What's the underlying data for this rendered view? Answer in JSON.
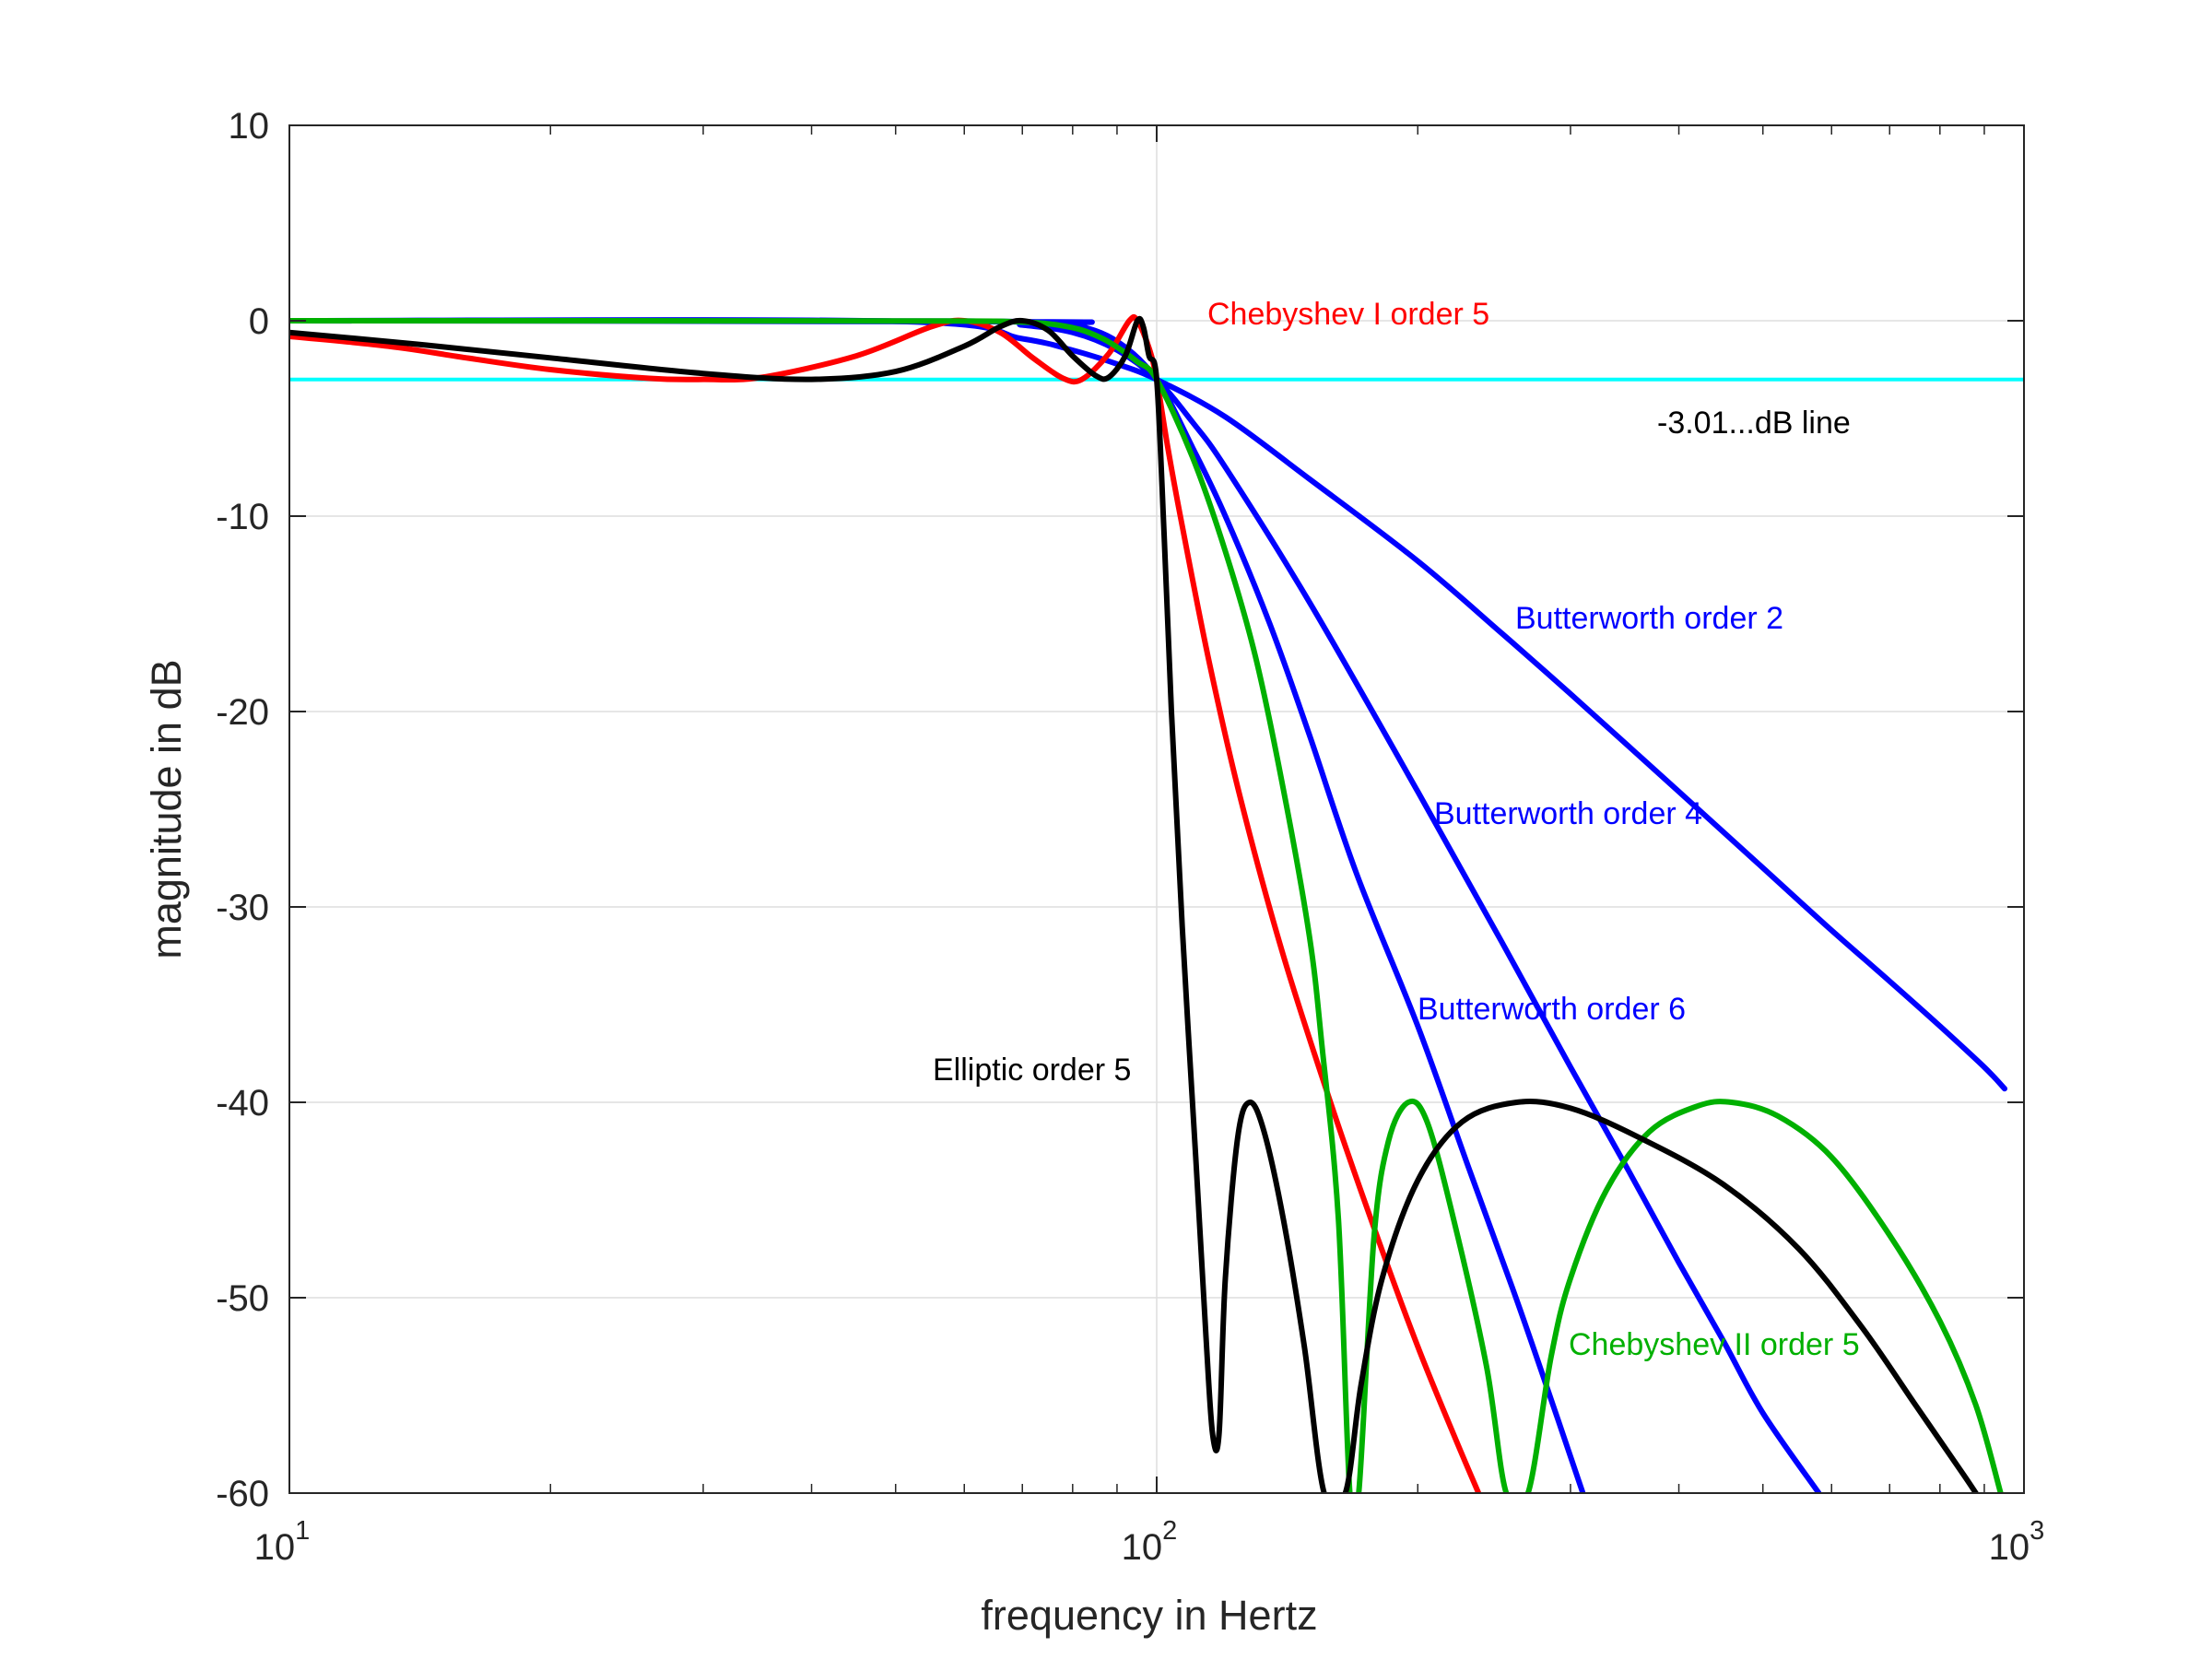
{
  "chart_data": {
    "type": "line",
    "title": "",
    "xlabel": "frequency in Hertz",
    "ylabel": "magnitude in dB",
    "x_scale": "log",
    "xlim": [
      10,
      1000
    ],
    "ylim": [
      -60,
      10
    ],
    "grid": true,
    "x_ticks": [
      {
        "value": 10,
        "base": "10",
        "exp": "1"
      },
      {
        "value": 100,
        "base": "10",
        "exp": "2"
      },
      {
        "value": 1000,
        "base": "10",
        "exp": "3"
      }
    ],
    "y_ticks": [
      {
        "value": 10,
        "label": "10"
      },
      {
        "value": 0,
        "label": "0"
      },
      {
        "value": -10,
        "label": "-10"
      },
      {
        "value": -20,
        "label": "-20"
      },
      {
        "value": -30,
        "label": "-30"
      },
      {
        "value": -40,
        "label": "-40"
      },
      {
        "value": -50,
        "label": "-50"
      },
      {
        "value": -60,
        "label": "-60"
      }
    ],
    "series": [
      {
        "key": "reference",
        "color": "#00FFFF",
        "points": [
          [
            10,
            -3.01
          ],
          [
            1000,
            -3.01
          ]
        ]
      },
      {
        "key": "butterworth2",
        "color": "#0000FF",
        "points": [
          [
            10,
            0
          ],
          [
            50,
            -0.03
          ],
          [
            70,
            -0.92
          ],
          [
            80,
            -1.51
          ],
          [
            90,
            -2.21
          ],
          [
            100,
            -3.01
          ],
          [
            120,
            -4.92
          ],
          [
            150,
            -8.1
          ],
          [
            200,
            -12.3
          ],
          [
            250,
            -16.0
          ],
          [
            300,
            -19.1
          ],
          [
            400,
            -24.1
          ],
          [
            500,
            -28.0
          ],
          [
            600,
            -31.2
          ],
          [
            700,
            -33.8
          ],
          [
            800,
            -36.1
          ],
          [
            900,
            -38.2
          ],
          [
            950,
            -39.3
          ]
        ]
      },
      {
        "key": "butterworth4",
        "color": "#0000FF",
        "points": [
          [
            10,
            0
          ],
          [
            60,
            -0.02
          ],
          [
            70,
            -0.22
          ],
          [
            80,
            -0.6
          ],
          [
            90,
            -1.5
          ],
          [
            100,
            -3.01
          ],
          [
            110,
            -5.2
          ],
          [
            120,
            -7.5
          ],
          [
            150,
            -14.4
          ],
          [
            200,
            -24.1
          ],
          [
            250,
            -31.8
          ],
          [
            300,
            -38.2
          ],
          [
            350,
            -43.5
          ],
          [
            400,
            -48.2
          ],
          [
            450,
            -52.2
          ],
          [
            500,
            -55.9
          ],
          [
            580,
            -60
          ]
        ]
      },
      {
        "key": "butterworth6",
        "color": "#0000FF",
        "points": [
          [
            10,
            0
          ],
          [
            70,
            -0.05
          ],
          [
            80,
            -0.2
          ],
          [
            90,
            -1.05
          ],
          [
            100,
            -3.01
          ],
          [
            110,
            -6.5
          ],
          [
            120,
            -10.0
          ],
          [
            135,
            -15.5
          ],
          [
            150,
            -21.2
          ],
          [
            170,
            -28.3
          ],
          [
            200,
            -36.1
          ],
          [
            230,
            -43.6
          ],
          [
            260,
            -50.1
          ],
          [
            290,
            -56.2
          ],
          [
            310,
            -60
          ]
        ]
      },
      {
        "key": "chebyshev1",
        "color": "#FF0000",
        "points": [
          [
            10,
            -0.8
          ],
          [
            13,
            -1.3
          ],
          [
            16,
            -1.9
          ],
          [
            20,
            -2.5
          ],
          [
            26,
            -2.95
          ],
          [
            30,
            -3.0
          ],
          [
            35,
            -2.9
          ],
          [
            45,
            -1.8
          ],
          [
            55,
            -0.3
          ],
          [
            60,
            0
          ],
          [
            66,
            -0.6
          ],
          [
            72,
            -1.9
          ],
          [
            78,
            -2.95
          ],
          [
            82,
            -3.0
          ],
          [
            88,
            -1.7
          ],
          [
            93,
            0
          ],
          [
            95,
            0
          ],
          [
            98,
            -1.4
          ],
          [
            100,
            -3.01
          ],
          [
            103,
            -6.5
          ],
          [
            107,
            -10.5
          ],
          [
            115,
            -17.5
          ],
          [
            125,
            -24.5
          ],
          [
            140,
            -32.5
          ],
          [
            160,
            -40.5
          ],
          [
            180,
            -47.0
          ],
          [
            200,
            -52.5
          ],
          [
            220,
            -57.0
          ],
          [
            235,
            -60
          ]
        ]
      },
      {
        "key": "chebyshev2",
        "color": "#00B000",
        "points": [
          [
            10,
            0
          ],
          [
            50,
            -0.01
          ],
          [
            70,
            -0.07
          ],
          [
            80,
            -0.36
          ],
          [
            86,
            -0.85
          ],
          [
            90,
            -1.35
          ],
          [
            95,
            -2.1
          ],
          [
            100,
            -3.01
          ],
          [
            110,
            -7.0
          ],
          [
            120,
            -11.8
          ],
          [
            130,
            -17.2
          ],
          [
            140,
            -24.0
          ],
          [
            150,
            -31.5
          ],
          [
            155,
            -37.0
          ],
          [
            162,
            -46.0
          ],
          [
            167,
            -60
          ],
          [
            171,
            -60
          ],
          [
            178,
            -47.0
          ],
          [
            185,
            -42.0
          ],
          [
            195,
            -40.0
          ],
          [
            205,
            -41.0
          ],
          [
            220,
            -46.0
          ],
          [
            240,
            -53.5
          ],
          [
            253,
            -60
          ],
          [
            268,
            -60
          ],
          [
            285,
            -53.0
          ],
          [
            300,
            -49.0
          ],
          [
            330,
            -44.5
          ],
          [
            370,
            -41.5
          ],
          [
            420,
            -40.2
          ],
          [
            460,
            -40.0
          ],
          [
            520,
            -40.7
          ],
          [
            600,
            -42.8
          ],
          [
            700,
            -46.8
          ],
          [
            800,
            -51.2
          ],
          [
            880,
            -55.5
          ],
          [
            940,
            -60
          ]
        ]
      },
      {
        "key": "elliptic",
        "color": "#000000",
        "points": [
          [
            10,
            -0.6
          ],
          [
            14,
            -1.2
          ],
          [
            20,
            -1.9
          ],
          [
            30,
            -2.7
          ],
          [
            40,
            -3.0
          ],
          [
            50,
            -2.6
          ],
          [
            60,
            -1.3
          ],
          [
            66,
            -0.3
          ],
          [
            70,
            0
          ],
          [
            75,
            -0.5
          ],
          [
            80,
            -1.8
          ],
          [
            85,
            -2.8
          ],
          [
            88,
            -2.9
          ],
          [
            92,
            -1.8
          ],
          [
            95,
            0
          ],
          [
            96.5,
            -0.3
          ],
          [
            98,
            -1.8
          ],
          [
            100,
            -3.01
          ],
          [
            102,
            -11.0
          ],
          [
            104,
            -20.0
          ],
          [
            107,
            -31.0
          ],
          [
            111,
            -43.0
          ],
          [
            114,
            -52.0
          ],
          [
            116,
            -57.0
          ],
          [
            118,
            -57.0
          ],
          [
            120,
            -49.0
          ],
          [
            124,
            -41.8
          ],
          [
            128,
            -40.0
          ],
          [
            133,
            -41.5
          ],
          [
            140,
            -46.0
          ],
          [
            148,
            -52.5
          ],
          [
            156,
            -60
          ],
          [
            165,
            -60
          ],
          [
            172,
            -54.5
          ],
          [
            182,
            -49.0
          ],
          [
            200,
            -44.0
          ],
          [
            225,
            -41.0
          ],
          [
            260,
            -40.0
          ],
          [
            300,
            -40.3
          ],
          [
            360,
            -41.8
          ],
          [
            450,
            -44.2
          ],
          [
            550,
            -47.5
          ],
          [
            650,
            -51.5
          ],
          [
            750,
            -55.5
          ],
          [
            850,
            -59.0
          ],
          [
            880,
            -60
          ]
        ]
      }
    ],
    "annotations": [
      {
        "text": "Chebyshev I order 5",
        "color": "#FF0000"
      },
      {
        "text": "-3.01...dB line",
        "color": "#000000"
      },
      {
        "text": "Butterworth order 2",
        "color": "#0000FF"
      },
      {
        "text": "Butterworth order 4",
        "color": "#0000FF"
      },
      {
        "text": "Butterworth order 6",
        "color": "#0000FF"
      },
      {
        "text": "Elliptic order 5",
        "color": "#000000"
      },
      {
        "text": "Chebyshev II order 5",
        "color": "#00B000"
      }
    ]
  }
}
